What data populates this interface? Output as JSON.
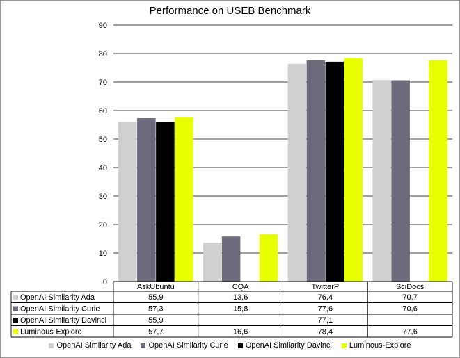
{
  "chart_data": {
    "type": "bar",
    "title": "Performance on USEB Benchmark",
    "categories": [
      "AskUbuntu",
      "CQA",
      "TwitterP",
      "SciDocs"
    ],
    "series": [
      {
        "name": "OpenAI Similarity Ada",
        "color": "#d0d0d0",
        "values": [
          55.9,
          13.6,
          76.4,
          70.7
        ],
        "labels": [
          "55,9",
          "13,6",
          "76,4",
          "70,7"
        ]
      },
      {
        "name": "OpenAI Similarity Curie",
        "color": "#6b6b7b",
        "values": [
          57.3,
          15.8,
          77.6,
          70.6
        ],
        "labels": [
          "57,3",
          "15,8",
          "77,6",
          "70,6"
        ]
      },
      {
        "name": "OpenAI Similarity Davinci",
        "color": "#000000",
        "values": [
          55.9,
          null,
          77.1,
          null
        ],
        "labels": [
          "55,9",
          "",
          "77,1",
          ""
        ]
      },
      {
        "name": "Luminous-Explore",
        "color": "#e8ff00",
        "values": [
          57.7,
          16.6,
          78.4,
          77.6
        ],
        "labels": [
          "57,7",
          "16,6",
          "78,4",
          "77,6"
        ]
      }
    ],
    "ylim": [
      0,
      90
    ],
    "yticks": [
      "0",
      "10",
      "20",
      "30",
      "40",
      "50",
      "60",
      "70",
      "80",
      "90"
    ],
    "grid": true,
    "legend_position": "bottom",
    "data_table": true
  }
}
